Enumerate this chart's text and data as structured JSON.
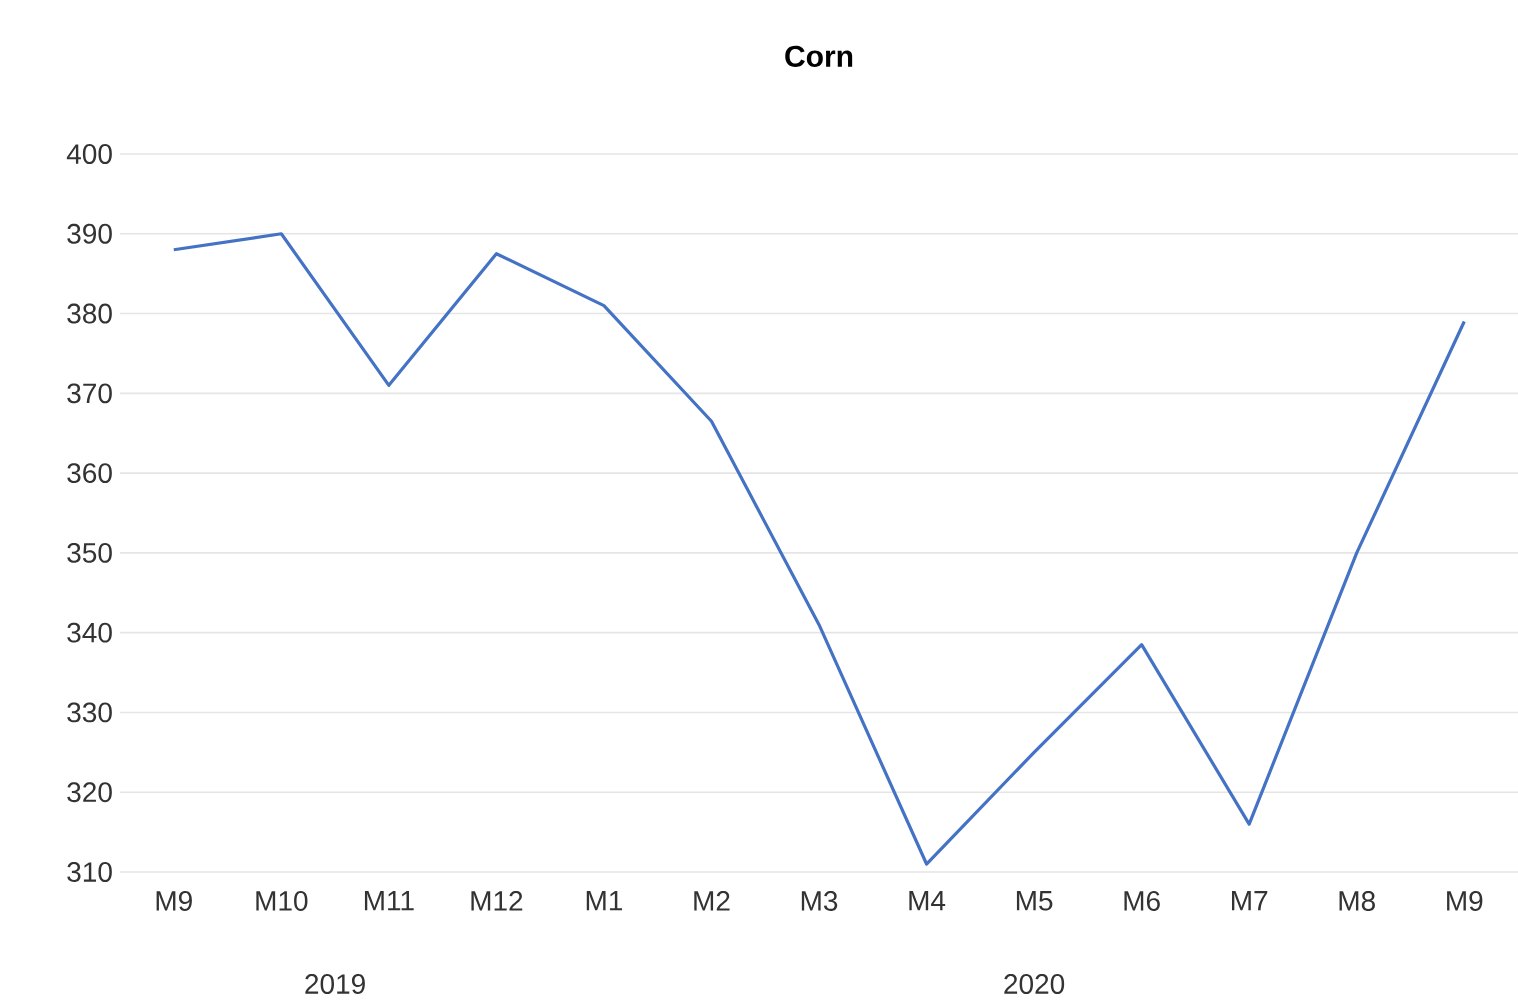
{
  "chart_data": {
    "type": "line",
    "title": "Corn",
    "categories": [
      "M9",
      "M10",
      "M11",
      "M12",
      "M1",
      "M2",
      "M3",
      "M4",
      "M5",
      "M6",
      "M7",
      "M8",
      "M9"
    ],
    "values": [
      388,
      390,
      371,
      387.5,
      381,
      366.5,
      341,
      311,
      325,
      338.5,
      316,
      350,
      379
    ],
    "color": "#4472c4",
    "ylim": [
      310,
      400
    ],
    "yticks": [
      310,
      320,
      330,
      340,
      350,
      360,
      370,
      380,
      390,
      400
    ],
    "grid": "y",
    "annotations": [
      "2019",
      "2020"
    ]
  }
}
